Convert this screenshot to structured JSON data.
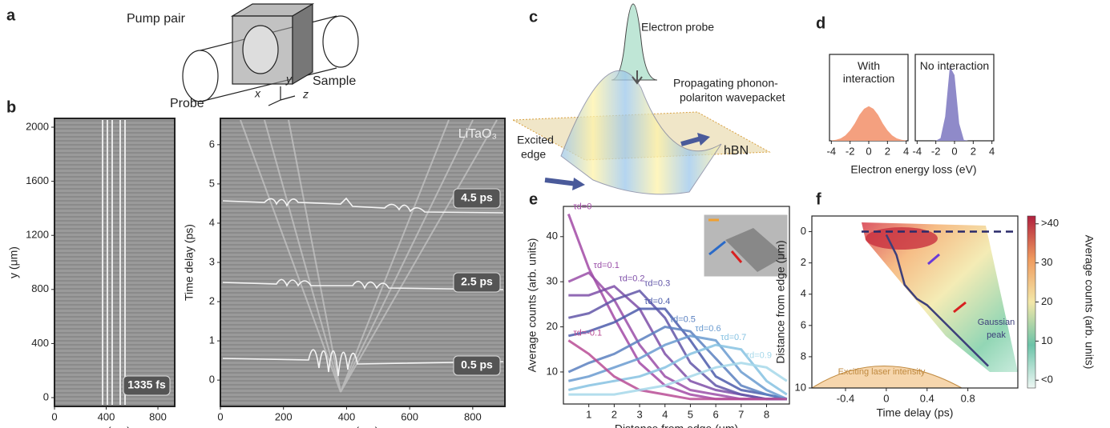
{
  "panel_labels": [
    "a",
    "b",
    "c",
    "d",
    "e",
    "f"
  ],
  "diagram_a": {
    "pump": "Pump pair",
    "sample": "Sample",
    "probe": "Probe",
    "axes": [
      "x",
      "y",
      "z"
    ]
  },
  "diagram_c": {
    "probe": "Electron probe",
    "wavepacket": [
      "Propagating phonon-",
      "polariton wavepacket"
    ],
    "edge": [
      "Excited",
      "edge"
    ],
    "material": "hBN"
  },
  "chart_data": [
    {
      "type": "image",
      "xlabel": "x (μm)",
      "ylabel": "y (μm)",
      "xlim": [
        0,
        930
      ],
      "ylim": [
        -65,
        2065
      ],
      "xticks": [
        0,
        400,
        800
      ],
      "yticks": [
        0,
        400,
        800,
        1200,
        1600,
        2000
      ],
      "annotations": [
        "1335 fs"
      ]
    },
    {
      "type": "image",
      "xlabel": "x (μm)",
      "ylabel": "Time delay (ps)",
      "xlim": [
        0,
        902
      ],
      "ylim": [
        -0.67,
        6.67
      ],
      "xticks": [
        0,
        200,
        400,
        600,
        800
      ],
      "yticks": [
        0,
        1,
        2,
        3,
        4,
        5,
        6
      ],
      "annotations": [
        "4.5 ps",
        "2.5 ps",
        "0.5 ps"
      ],
      "label": "LiTaO₃"
    },
    {
      "type": "area",
      "xlabel": "Electron energy loss (eV)",
      "xlim": [
        -4.2,
        4.2
      ],
      "ylim": [
        0,
        1
      ],
      "xticks": [
        -4,
        -2,
        0,
        2,
        4
      ],
      "x": [
        -4,
        -3.5,
        -3,
        -2.5,
        -2,
        -1.5,
        -1,
        -0.5,
        0,
        0.5,
        1,
        1.5,
        2,
        2.5,
        3,
        3.5,
        4
      ],
      "series": [
        {
          "name": "With interaction",
          "color": "#f4a07f",
          "values": [
            0.004,
            0.011,
            0.028,
            0.063,
            0.12,
            0.2,
            0.3,
            0.37,
            0.4,
            0.37,
            0.3,
            0.2,
            0.12,
            0.063,
            0.028,
            0.011,
            0.004
          ]
        },
        {
          "name": "No interaction",
          "color": "#8f8ac9",
          "values": [
            0,
            0,
            0,
            0,
            0.001,
            0.03,
            0.28,
            0.86,
            0.76,
            0.2,
            0.01,
            0,
            0,
            0,
            0,
            0,
            0
          ]
        }
      ]
    },
    {
      "type": "line",
      "xlabel": "Distance from edge (μm)",
      "ylabel": "Average counts (arb. units)",
      "xlim": [
        0,
        8.9
      ],
      "ylim": [
        2.9,
        46.7
      ],
      "xticks": [
        1,
        2,
        3,
        4,
        5,
        6,
        7,
        8
      ],
      "yticks": [
        10,
        20,
        30,
        40
      ],
      "x": [
        0.2,
        1,
        2,
        3,
        4,
        5,
        6,
        7,
        8,
        8.8
      ],
      "series": [
        {
          "name": "τd=0",
          "color": "#a24aa6",
          "values": [
            45,
            33,
            22,
            12,
            7,
            5,
            4,
            4,
            4,
            4
          ]
        },
        {
          "name": "τd=0.1",
          "color": "#9a4fa8",
          "values": [
            30,
            32,
            26,
            16,
            9,
            6,
            5,
            4,
            4,
            4
          ]
        },
        {
          "name": "τd=0.2",
          "color": "#7e4fa8",
          "values": [
            27,
            27,
            29,
            24,
            14,
            8,
            6,
            5,
            4,
            4
          ]
        },
        {
          "name": "τd=0.3",
          "color": "#6256a8",
          "values": [
            22,
            23,
            26,
            28,
            22,
            12,
            7,
            5,
            4,
            4
          ]
        },
        {
          "name": "τd=0.4",
          "color": "#4c5cab",
          "values": [
            18,
            19,
            21,
            24,
            24,
            17,
            9,
            6,
            5,
            4
          ]
        },
        {
          "name": "τd=0.5",
          "color": "#5a80c0",
          "values": [
            10,
            12,
            14,
            17,
            20,
            19,
            13,
            7,
            5,
            4
          ]
        },
        {
          "name": "τd=0.6",
          "color": "#6a9bd0",
          "values": [
            8,
            9,
            11,
            13,
            16,
            18,
            17,
            10,
            6,
            4
          ]
        },
        {
          "name": "τd=0.7",
          "color": "#86c2e2",
          "values": [
            6,
            7,
            8,
            9,
            11,
            14,
            16,
            15,
            8,
            5
          ]
        },
        {
          "name": "τd=-0.1",
          "color": "#b94c95",
          "values": [
            17,
            14,
            9,
            6,
            5,
            4,
            4,
            4,
            4,
            4
          ]
        },
        {
          "name": "τd=0.9",
          "color": "#a6d8ea",
          "values": [
            5,
            5,
            5,
            6,
            7,
            9,
            11,
            12,
            11,
            8
          ]
        }
      ]
    },
    {
      "type": "heatmap",
      "xlabel": "Time delay (ps)",
      "ylabel": "Distance from edge (μm)",
      "xlim": [
        -0.73,
        1.29
      ],
      "ylim": [
        10,
        -1
      ],
      "xticks": [
        -0.4,
        0,
        0.4,
        0.8
      ],
      "yticks": [
        0,
        2,
        4,
        6,
        8,
        10
      ],
      "series": [
        {
          "name": "Gaussian peak",
          "color": "#3d3f7a",
          "x": [
            0,
            0.1,
            0.18,
            0.3,
            0.4,
            1.0
          ],
          "values": [
            0.2,
            1.5,
            3.4,
            4.3,
            4.7,
            8.6
          ]
        }
      ],
      "annotations": [
        "Exciting laser intensity"
      ],
      "colorbar": {
        "label": "Average counts (arb. units)",
        "lim": [
          -2,
          42
        ],
        "ticks": [
          {
            "value": 0,
            "label": "<0"
          },
          10,
          20,
          30,
          {
            "value": 40,
            "label": ">40"
          }
        ]
      }
    }
  ]
}
